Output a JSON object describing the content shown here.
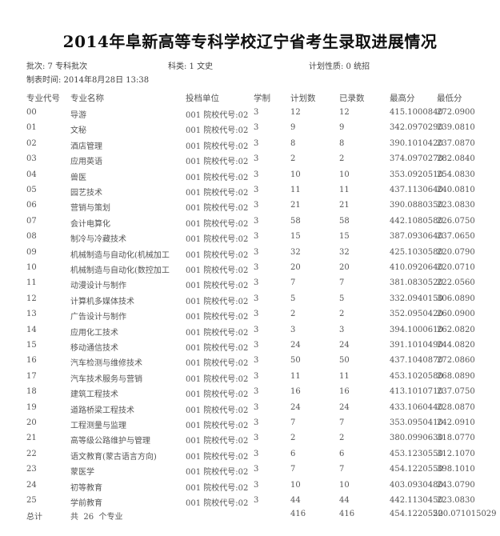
{
  "title": "2014年阜新高等专科学校辽宁省考生录取进展情况",
  "info": {
    "batch": "批次: 7 专科批次",
    "category": "科类: 1 文史",
    "plan_type": "计划性质: 0 统招",
    "created": "制表时间: 2014年8月28日 13:38"
  },
  "columns": [
    "专业代号",
    "专业名称",
    "投档单位",
    "学制",
    "计划数",
    "已录数",
    "最高分",
    "最低分"
  ],
  "rows": [
    {
      "code": "00",
      "name": "导游",
      "unit": "001 院校代号:02",
      "len": "3",
      "plan": "12",
      "admitted": "12",
      "max": "415.1000840",
      "min": "272.0900"
    },
    {
      "code": "01",
      "name": "文秘",
      "unit": "001 院校代号:02",
      "len": "3",
      "plan": "9",
      "admitted": "9",
      "max": "342.0970290",
      "min": "239.0810"
    },
    {
      "code": "02",
      "name": "酒店管理",
      "unit": "001 院校代号:02",
      "len": "3",
      "plan": "8",
      "admitted": "8",
      "max": "390.1010420",
      "min": "237.0870"
    },
    {
      "code": "03",
      "name": "应用英语",
      "unit": "001 院校代号:02",
      "len": "3",
      "plan": "2",
      "admitted": "2",
      "max": "374.0970270",
      "min": "282.0840"
    },
    {
      "code": "04",
      "name": "兽医",
      "unit": "001 院校代号:02",
      "len": "3",
      "plan": "10",
      "admitted": "10",
      "max": "353.0920510",
      "min": "254.0830"
    },
    {
      "code": "05",
      "name": "园艺技术",
      "unit": "001 院校代号:02",
      "len": "3",
      "plan": "11",
      "admitted": "11",
      "max": "437.1130640",
      "min": "240.0810"
    },
    {
      "code": "06",
      "name": "营销与策划",
      "unit": "001 院校代号:02",
      "len": "3",
      "plan": "21",
      "admitted": "21",
      "max": "390.0880350",
      "min": "223.0830"
    },
    {
      "code": "07",
      "name": "会计电算化",
      "unit": "001 院校代号:02",
      "len": "3",
      "plan": "58",
      "admitted": "58",
      "max": "442.1080580",
      "min": "226.0750"
    },
    {
      "code": "08",
      "name": "制冷与冷藏技术",
      "unit": "001 院校代号:02",
      "len": "3",
      "plan": "15",
      "admitted": "15",
      "max": "387.0930640",
      "min": "237.0650"
    },
    {
      "code": "09",
      "name": "机械制造与自动化(机械加工",
      "unit": "001 院校代号:02",
      "len": "3",
      "plan": "32",
      "admitted": "32",
      "max": "425.1030580",
      "min": "220.0790"
    },
    {
      "code": "10",
      "name": "机械制造与自动化(数控加工",
      "unit": "001 院校代号:02",
      "len": "3",
      "plan": "20",
      "admitted": "20",
      "max": "410.0920640",
      "min": "220.0710"
    },
    {
      "code": "11",
      "name": "动漫设计与制作",
      "unit": "001 院校代号:02",
      "len": "3",
      "plan": "7",
      "admitted": "7",
      "max": "381.0830520",
      "min": "222.0560"
    },
    {
      "code": "12",
      "name": "计算机多媒体技术",
      "unit": "001 院校代号:02",
      "len": "3",
      "plan": "5",
      "admitted": "5",
      "max": "332.0940150",
      "min": "306.0890"
    },
    {
      "code": "13",
      "name": "广告设计与制作",
      "unit": "001 院校代号:02",
      "len": "3",
      "plan": "2",
      "admitted": "2",
      "max": "352.0950420",
      "min": "260.0900"
    },
    {
      "code": "14",
      "name": "应用化工技术",
      "unit": "001 院校代号:02",
      "len": "3",
      "plan": "3",
      "admitted": "3",
      "max": "394.1000610",
      "min": "262.0820"
    },
    {
      "code": "15",
      "name": "移动通信技术",
      "unit": "001 院校代号:02",
      "len": "3",
      "plan": "24",
      "admitted": "24",
      "max": "391.1010490",
      "min": "244.0820"
    },
    {
      "code": "16",
      "name": "汽车检测与维修技术",
      "unit": "001 院校代号:02",
      "len": "3",
      "plan": "50",
      "admitted": "50",
      "max": "437.1040870",
      "min": "272.0860"
    },
    {
      "code": "17",
      "name": "汽车技术服务与营销",
      "unit": "001 院校代号:02",
      "len": "3",
      "plan": "11",
      "admitted": "11",
      "max": "453.1020580",
      "min": "268.0890"
    },
    {
      "code": "18",
      "name": "建筑工程技术",
      "unit": "001 院校代号:02",
      "len": "3",
      "plan": "16",
      "admitted": "16",
      "max": "413.1010710",
      "min": "237.0750"
    },
    {
      "code": "19",
      "name": "道路桥梁工程技术",
      "unit": "001 院校代号:02",
      "len": "3",
      "plan": "24",
      "admitted": "24",
      "max": "433.1060440",
      "min": "228.0870"
    },
    {
      "code": "20",
      "name": "工程测量与监理",
      "unit": "001 院校代号:02",
      "len": "3",
      "plan": "7",
      "admitted": "7",
      "max": "353.0950410",
      "min": "242.0910"
    },
    {
      "code": "21",
      "name": "高等级公路维护与管理",
      "unit": "001 院校代号:02",
      "len": "3",
      "plan": "2",
      "admitted": "2",
      "max": "380.0990630",
      "min": "318.0770"
    },
    {
      "code": "22",
      "name": "语文教育(蒙古语言方向)",
      "unit": "001 院校代号:02",
      "len": "3",
      "plan": "6",
      "admitted": "6",
      "max": "453.1230550",
      "min": "312.1070"
    },
    {
      "code": "23",
      "name": "蒙医学",
      "unit": "001 院校代号:02",
      "len": "3",
      "plan": "7",
      "admitted": "7",
      "max": "454.1220550",
      "min": "398.1010"
    },
    {
      "code": "24",
      "name": "初等教育",
      "unit": "001 院校代号:02",
      "len": "3",
      "plan": "10",
      "admitted": "10",
      "max": "403.0930480",
      "min": "243.0790"
    },
    {
      "code": "25",
      "name": "学前教育",
      "unit": "001 院校代号:02",
      "len": "3",
      "plan": "44",
      "admitted": "44",
      "max": "442.1130450",
      "min": "223.0830"
    }
  ],
  "total": {
    "label": "总计",
    "desc": "共  26  个专业",
    "plan": "416",
    "admitted": "416",
    "max": "454.1220550",
    "min": "220.071015029"
  }
}
